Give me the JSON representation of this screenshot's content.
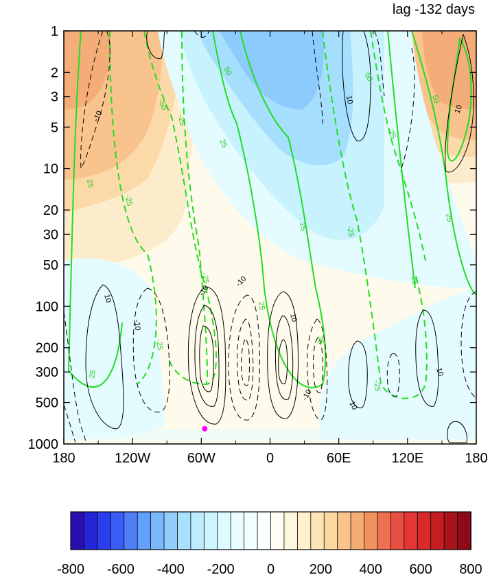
{
  "chart_data": {
    "type": "heatmap",
    "title": "lag -132 days",
    "xlabel": "",
    "ylabel": "",
    "x_ticks": [
      {
        "value": -180,
        "label": "180"
      },
      {
        "value": -120,
        "label": "120W"
      },
      {
        "value": -60,
        "label": "60W"
      },
      {
        "value": 0,
        "label": "0"
      },
      {
        "value": 60,
        "label": "60E"
      },
      {
        "value": 120,
        "label": "120E"
      },
      {
        "value": 180,
        "label": "180"
      }
    ],
    "xlim": [
      -180,
      180
    ],
    "y_scale": "log",
    "y_reversed": true,
    "ylim": [
      1,
      1000
    ],
    "y_ticks": [
      1,
      2,
      3,
      5,
      10,
      20,
      30,
      50,
      100,
      200,
      300,
      500,
      1000
    ],
    "colorbar": {
      "levels": [
        -800,
        -750,
        -700,
        -650,
        -600,
        -550,
        -500,
        -450,
        -400,
        -350,
        -300,
        -250,
        -200,
        -150,
        -100,
        -50,
        0,
        50,
        100,
        150,
        200,
        250,
        300,
        350,
        400,
        450,
        500,
        550,
        600,
        650,
        700,
        750,
        800
      ],
      "tick_labels": [
        "-800",
        "-600",
        "-400",
        "-200",
        "0",
        "200",
        "400",
        "600",
        "800"
      ],
      "colors": [
        "#2a0fb0",
        "#2525d8",
        "#2a3ef0",
        "#3a5ef5",
        "#4f7ef7",
        "#62a0fa",
        "#7ab8fb",
        "#92cdfc",
        "#a8e0fd",
        "#bcecfe",
        "#cdf5fe",
        "#def9ff",
        "#e9fcff",
        "#f2feff",
        "#fafffe",
        "#fffdf4",
        "#fef7df",
        "#fef0cc",
        "#fde6b6",
        "#fcd8a0",
        "#f9c48a",
        "#f6ad74",
        "#f29160",
        "#ee7050",
        "#e94e42",
        "#e43636",
        "#d82a2a",
        "#c41e22",
        "#a8141c",
        "#8f0a18"
      ]
    },
    "contour_label_values": [
      "-50",
      "-25",
      "25",
      "50",
      "-10",
      "10"
    ],
    "marker": {
      "lon": -57,
      "lev": 850,
      "color": "#ff00ff"
    }
  },
  "colors": {
    "positive_contour": "#000000",
    "wind_contour": "#22dd22"
  }
}
